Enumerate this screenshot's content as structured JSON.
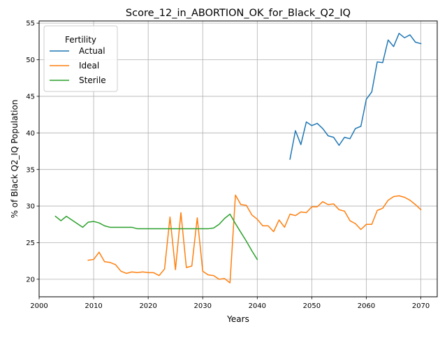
{
  "chart_data": {
    "type": "line",
    "title": "Score_12_in_ABORTION_OK_for_Black_Q2_IQ",
    "xlabel": "Years",
    "ylabel": "% of Black Q2_IQ Population",
    "xlim": [
      2000,
      2073
    ],
    "ylim": [
      17.6,
      55.3
    ],
    "xticks": [
      2000,
      2010,
      2020,
      2030,
      2040,
      2050,
      2060,
      2070
    ],
    "yticks": [
      20,
      25,
      30,
      35,
      40,
      45,
      50,
      55
    ],
    "grid": true,
    "legend": {
      "title": "Fertility",
      "placement": "top-left"
    },
    "series": [
      {
        "name": "Actual",
        "color": "#1f77b4",
        "x": [
          2046,
          2047,
          2048,
          2049,
          2050,
          2051,
          2052,
          2053,
          2054,
          2055,
          2056,
          2057,
          2058,
          2059,
          2060,
          2061,
          2062,
          2063,
          2064,
          2065,
          2066,
          2067,
          2068,
          2069,
          2070
        ],
        "y": [
          36.4,
          40.3,
          38.4,
          41.5,
          41.0,
          41.3,
          40.6,
          39.6,
          39.4,
          38.3,
          39.4,
          39.2,
          40.6,
          40.9,
          44.6,
          45.6,
          49.7,
          49.6,
          52.7,
          51.8,
          53.6,
          53.0,
          53.4,
          52.4,
          52.2
        ]
      },
      {
        "name": "Ideal",
        "color": "#ff7f0e",
        "x": [
          2009,
          2010,
          2011,
          2012,
          2013,
          2014,
          2015,
          2016,
          2017,
          2018,
          2019,
          2020,
          2021,
          2022,
          2023,
          2024,
          2025,
          2026,
          2027,
          2028,
          2029,
          2030,
          2031,
          2032,
          2033,
          2034,
          2035,
          2036,
          2037,
          2038,
          2039,
          2040,
          2041,
          2042,
          2043,
          2044,
          2045,
          2046,
          2047,
          2048,
          2049,
          2050,
          2051,
          2052,
          2053,
          2054,
          2055,
          2056,
          2057,
          2058,
          2059,
          2060,
          2061,
          2062,
          2063,
          2064,
          2065,
          2066,
          2067,
          2068,
          2069,
          2070
        ],
        "y": [
          22.6,
          22.7,
          23.7,
          22.4,
          22.3,
          22.0,
          21.1,
          20.8,
          21.0,
          20.9,
          21.0,
          20.9,
          20.9,
          20.5,
          21.4,
          28.5,
          21.3,
          29.1,
          21.6,
          21.8,
          28.4,
          21.1,
          20.6,
          20.5,
          20.0,
          20.1,
          19.5,
          31.5,
          30.2,
          30.1,
          28.8,
          28.2,
          27.3,
          27.3,
          26.5,
          28.1,
          27.1,
          28.9,
          28.7,
          29.2,
          29.1,
          29.9,
          29.9,
          30.6,
          30.2,
          30.3,
          29.5,
          29.3,
          28.0,
          27.6,
          26.8,
          27.5,
          27.5,
          29.4,
          29.7,
          30.8,
          31.3,
          31.4,
          31.2,
          30.8,
          30.2,
          29.5
        ]
      },
      {
        "name": "Sterile",
        "color": "#2ca02c",
        "x": [
          2003,
          2004,
          2005,
          2006,
          2007,
          2008,
          2009,
          2010,
          2011,
          2012,
          2013,
          2014,
          2015,
          2016,
          2017,
          2018,
          2019,
          2020,
          2021,
          2022,
          2023,
          2024,
          2025,
          2026,
          2027,
          2028,
          2029,
          2030,
          2031,
          2032,
          2033,
          2034,
          2035,
          2036,
          2037,
          2038,
          2039,
          2040
        ],
        "y": [
          28.6,
          28.0,
          28.6,
          28.1,
          27.6,
          27.1,
          27.8,
          27.9,
          27.7,
          27.3,
          27.1,
          27.1,
          27.1,
          27.1,
          27.1,
          26.9,
          26.9,
          26.9,
          26.9,
          26.9,
          26.9,
          26.9,
          26.9,
          26.9,
          26.9,
          26.9,
          26.9,
          26.9,
          26.9,
          27.0,
          27.5,
          28.3,
          28.9,
          27.6,
          26.4,
          25.2,
          23.9,
          22.7
        ]
      }
    ]
  }
}
